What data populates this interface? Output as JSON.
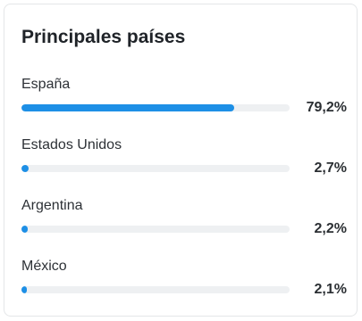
{
  "card": {
    "title": "Principales países"
  },
  "countries": [
    {
      "name": "España",
      "value_label": "79,2%",
      "fill_fraction": 0.792
    },
    {
      "name": "Estados Unidos",
      "value_label": "2,7%",
      "fill_fraction": 0.027
    },
    {
      "name": "Argentina",
      "value_label": "2,2%",
      "fill_fraction": 0.022
    },
    {
      "name": "México",
      "value_label": "2,1%",
      "fill_fraction": 0.021
    }
  ],
  "colors": {
    "bar_fill": "#1d8fe6",
    "bar_track": "#eef0f2",
    "title_text": "#1f2328",
    "label_text": "#2d3136"
  }
}
